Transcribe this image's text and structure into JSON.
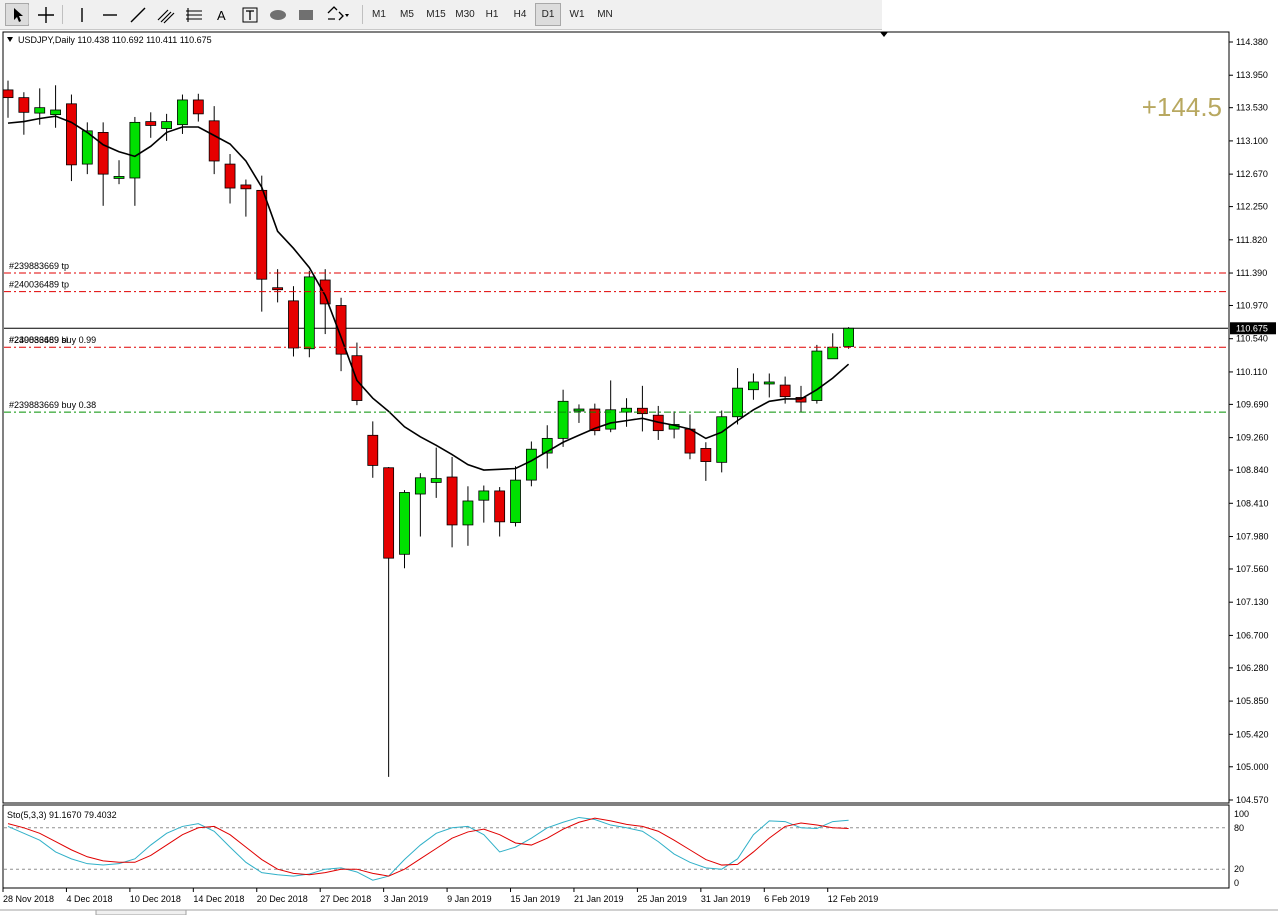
{
  "toolbar": {
    "timeframes": [
      "M1",
      "M5",
      "M15",
      "M30",
      "H1",
      "H4",
      "D1",
      "W1",
      "MN"
    ],
    "active_timeframe": "D1",
    "tools": [
      "cursor-icon",
      "crosshair-icon",
      "vertical-line-icon",
      "horizontal-line-icon",
      "trendline-icon",
      "fibonacci-channel-icon",
      "fibonacci-fan-icon",
      "text-icon",
      "text-label-icon",
      "ellipse-icon",
      "rectangle-icon",
      "arrow-shapes-icon"
    ],
    "text_tool_label": "A"
  },
  "chart_header": {
    "symbol_line": "USDJPY,Daily  110.438 110.692 110.411 110.675"
  },
  "profit_label": "+144.5",
  "current_price_label": "110.675",
  "colors": {
    "bull": "#00e000",
    "bear": "#e60000",
    "wick": "#000000",
    "ma": "#000000",
    "tp_line": "#e00000",
    "buy_line": "#009000",
    "profit": "#b8a860",
    "sto_main": "#30b0c8",
    "sto_signal": "#e00000",
    "level_line": "#909090"
  },
  "trade_lines": [
    {
      "label": "#239883669 tp",
      "price": 111.39,
      "kind": "tp"
    },
    {
      "label": "#240036489 tp",
      "price": 111.15,
      "kind": "tp"
    },
    {
      "label": "#240036489 buy 0.99",
      "price": 110.43,
      "kind": "buy-red"
    },
    {
      "label": "#239883669 buy 0.38",
      "price": 109.59,
      "kind": "buy-green"
    }
  ],
  "overlap_label": "#239883669 sl",
  "chart_data": [
    {
      "type": "candlestick",
      "title": "USDJPY,Daily",
      "ohlc_header": [
        110.438,
        110.692,
        110.411,
        110.675
      ],
      "ylim": [
        104.57,
        114.38
      ],
      "y_ticks": [
        114.38,
        113.95,
        113.53,
        113.1,
        112.67,
        112.25,
        111.82,
        111.39,
        110.97,
        110.54,
        110.11,
        109.69,
        109.26,
        108.84,
        108.41,
        107.98,
        107.56,
        107.13,
        106.7,
        106.28,
        105.85,
        105.42,
        105.0,
        104.57
      ],
      "y_tick_labels": [
        "114.380",
        "113.950",
        "113.530",
        "113.100",
        "112.670",
        "112.250",
        "111.820",
        "111.390",
        "110.970",
        "110.540",
        "110.110",
        "109.690",
        "109.260",
        "108.840",
        "108.410",
        "107.980",
        "107.560",
        "107.130",
        "106.700",
        "106.280",
        "105.850",
        "105.420",
        "105.000",
        "104.570"
      ],
      "x_tick_labels": [
        "28 Nov 2018",
        "4 Dec 2018",
        "10 Dec 2018",
        "14 Dec 2018",
        "20 Dec 2018",
        "27 Dec 2018",
        "3 Jan 2019",
        "9 Jan 2019",
        "15 Jan 2019",
        "21 Jan 2019",
        "25 Jan 2019",
        "31 Jan 2019",
        "6 Feb 2019",
        "12 Feb 2019"
      ],
      "x_tick_index": [
        0,
        4,
        8,
        12,
        16,
        20,
        24,
        28,
        32,
        36,
        40,
        44,
        48,
        52
      ],
      "candles": [
        [
          113.76,
          113.88,
          113.4,
          113.66
        ],
        [
          113.66,
          113.73,
          113.18,
          113.47
        ],
        [
          113.46,
          113.78,
          113.31,
          113.53
        ],
        [
          113.44,
          113.82,
          113.27,
          113.5
        ],
        [
          113.58,
          113.7,
          112.58,
          112.79
        ],
        [
          112.8,
          113.34,
          112.67,
          113.23
        ],
        [
          113.21,
          113.34,
          112.26,
          112.67
        ],
        [
          112.62,
          112.85,
          112.54,
          112.64
        ],
        [
          112.62,
          113.41,
          112.26,
          113.34
        ],
        [
          113.35,
          113.47,
          113.14,
          113.3
        ],
        [
          113.26,
          113.45,
          113.1,
          113.35
        ],
        [
          113.31,
          113.7,
          113.19,
          113.63
        ],
        [
          113.63,
          113.71,
          113.35,
          113.45
        ],
        [
          113.36,
          113.55,
          112.67,
          112.84
        ],
        [
          112.8,
          112.93,
          112.29,
          112.49
        ],
        [
          112.53,
          112.6,
          112.12,
          112.48
        ],
        [
          112.46,
          112.65,
          110.89,
          111.31
        ],
        [
          111.2,
          111.44,
          111.01,
          111.18
        ],
        [
          111.03,
          111.22,
          110.31,
          110.42
        ],
        [
          110.41,
          111.42,
          110.3,
          111.34
        ],
        [
          111.3,
          111.44,
          110.6,
          110.99
        ],
        [
          110.97,
          111.07,
          110.12,
          110.34
        ],
        [
          110.32,
          110.49,
          109.68,
          109.74
        ],
        [
          109.29,
          109.47,
          108.74,
          108.9
        ],
        [
          108.87,
          108.88,
          104.87,
          107.7
        ],
        [
          107.75,
          108.58,
          107.57,
          108.55
        ],
        [
          108.53,
          108.8,
          107.98,
          108.74
        ],
        [
          108.68,
          109.13,
          108.48,
          108.73
        ],
        [
          108.75,
          109.01,
          107.84,
          108.13
        ],
        [
          108.13,
          108.63,
          107.86,
          108.44
        ],
        [
          108.45,
          108.64,
          108.16,
          108.57
        ],
        [
          108.57,
          108.62,
          107.98,
          108.17
        ],
        [
          108.16,
          108.89,
          108.11,
          108.71
        ],
        [
          108.71,
          109.21,
          108.63,
          109.11
        ],
        [
          109.06,
          109.42,
          108.86,
          109.25
        ],
        [
          109.25,
          109.88,
          109.14,
          109.73
        ],
        [
          109.62,
          109.69,
          109.45,
          109.63
        ],
        [
          109.63,
          109.7,
          109.29,
          109.35
        ],
        [
          109.37,
          110.0,
          109.33,
          109.62
        ],
        [
          109.59,
          109.77,
          109.4,
          109.64
        ],
        [
          109.64,
          109.93,
          109.34,
          109.57
        ],
        [
          109.55,
          109.67,
          109.23,
          109.35
        ],
        [
          109.37,
          109.6,
          109.25,
          109.43
        ],
        [
          109.37,
          109.56,
          108.98,
          109.06
        ],
        [
          109.12,
          109.2,
          108.7,
          108.95
        ],
        [
          108.94,
          109.61,
          108.81,
          109.53
        ],
        [
          109.53,
          110.16,
          109.43,
          109.9
        ],
        [
          109.88,
          110.09,
          109.75,
          109.98
        ],
        [
          109.97,
          110.09,
          109.78,
          109.98
        ],
        [
          109.94,
          110.05,
          109.7,
          109.79
        ],
        [
          109.78,
          109.93,
          109.59,
          109.72
        ],
        [
          109.74,
          110.46,
          109.7,
          110.38
        ],
        [
          110.28,
          110.61,
          110.32,
          110.43
        ],
        [
          110.44,
          110.69,
          110.41,
          110.675
        ]
      ],
      "ma_values": [
        113.33,
        113.35,
        113.39,
        113.42,
        113.34,
        113.21,
        113.05,
        112.96,
        112.9,
        113.03,
        113.21,
        113.28,
        113.28,
        113.17,
        113.06,
        112.84,
        112.5,
        111.93,
        111.71,
        111.46,
        111.1,
        110.56,
        110.0,
        109.77,
        109.6,
        109.4,
        109.27,
        109.16,
        109.04,
        108.91,
        108.84,
        108.85,
        108.86,
        108.96,
        109.08,
        109.2,
        109.29,
        109.38,
        109.45,
        109.48,
        109.51,
        109.46,
        109.42,
        109.37,
        109.25,
        109.33,
        109.48,
        109.62,
        109.73,
        109.76,
        109.76,
        109.88,
        110.03,
        110.21
      ]
    },
    {
      "type": "line",
      "title": "Sto(5,3,3) 91.1670 79.4032",
      "ylim": [
        0,
        100
      ],
      "y_tick_labels": [
        "100",
        "80",
        "20",
        "0"
      ],
      "levels": [
        80,
        20
      ],
      "series": [
        {
          "name": "Sto(5,3,3)",
          "values": [
            82,
            72,
            62,
            45,
            35,
            28,
            26,
            28,
            35,
            55,
            72,
            82,
            86,
            75,
            52,
            30,
            15,
            12,
            10,
            13,
            20,
            22,
            16,
            4,
            10,
            34,
            55,
            72,
            80,
            82,
            70,
            45,
            52,
            65,
            80,
            88,
            95,
            92,
            84,
            80,
            75,
            60,
            42,
            30,
            22,
            20,
            35,
            70,
            90,
            89,
            80,
            79,
            89,
            91
          ]
        },
        {
          "name": "Signal",
          "values": [
            86,
            80,
            72,
            60,
            48,
            38,
            32,
            30,
            30,
            40,
            55,
            70,
            80,
            82,
            70,
            52,
            34,
            20,
            14,
            12,
            15,
            20,
            20,
            14,
            10,
            20,
            35,
            50,
            65,
            74,
            78,
            70,
            58,
            55,
            65,
            78,
            88,
            94,
            90,
            85,
            82,
            75,
            62,
            48,
            34,
            26,
            27,
            45,
            65,
            82,
            87,
            84,
            80,
            79
          ]
        }
      ]
    }
  ]
}
